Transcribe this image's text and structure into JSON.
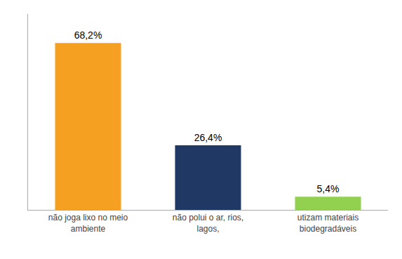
{
  "chart_data": {
    "type": "bar",
    "categories": [
      "não joga lixo no meio\nambiente",
      "não polui o ar, rios,\nlagos,",
      "utizam materiais\nbiodegradáveis"
    ],
    "values": [
      68.2,
      26.4,
      5.4
    ],
    "value_labels": [
      "68,2%",
      "26,4%",
      "5,4%"
    ],
    "colors": [
      "#F5A020",
      "#1F3864",
      "#92D050"
    ],
    "ylim": [
      0,
      80
    ],
    "data_labels": true,
    "tick_labels": "x",
    "grid": false
  }
}
